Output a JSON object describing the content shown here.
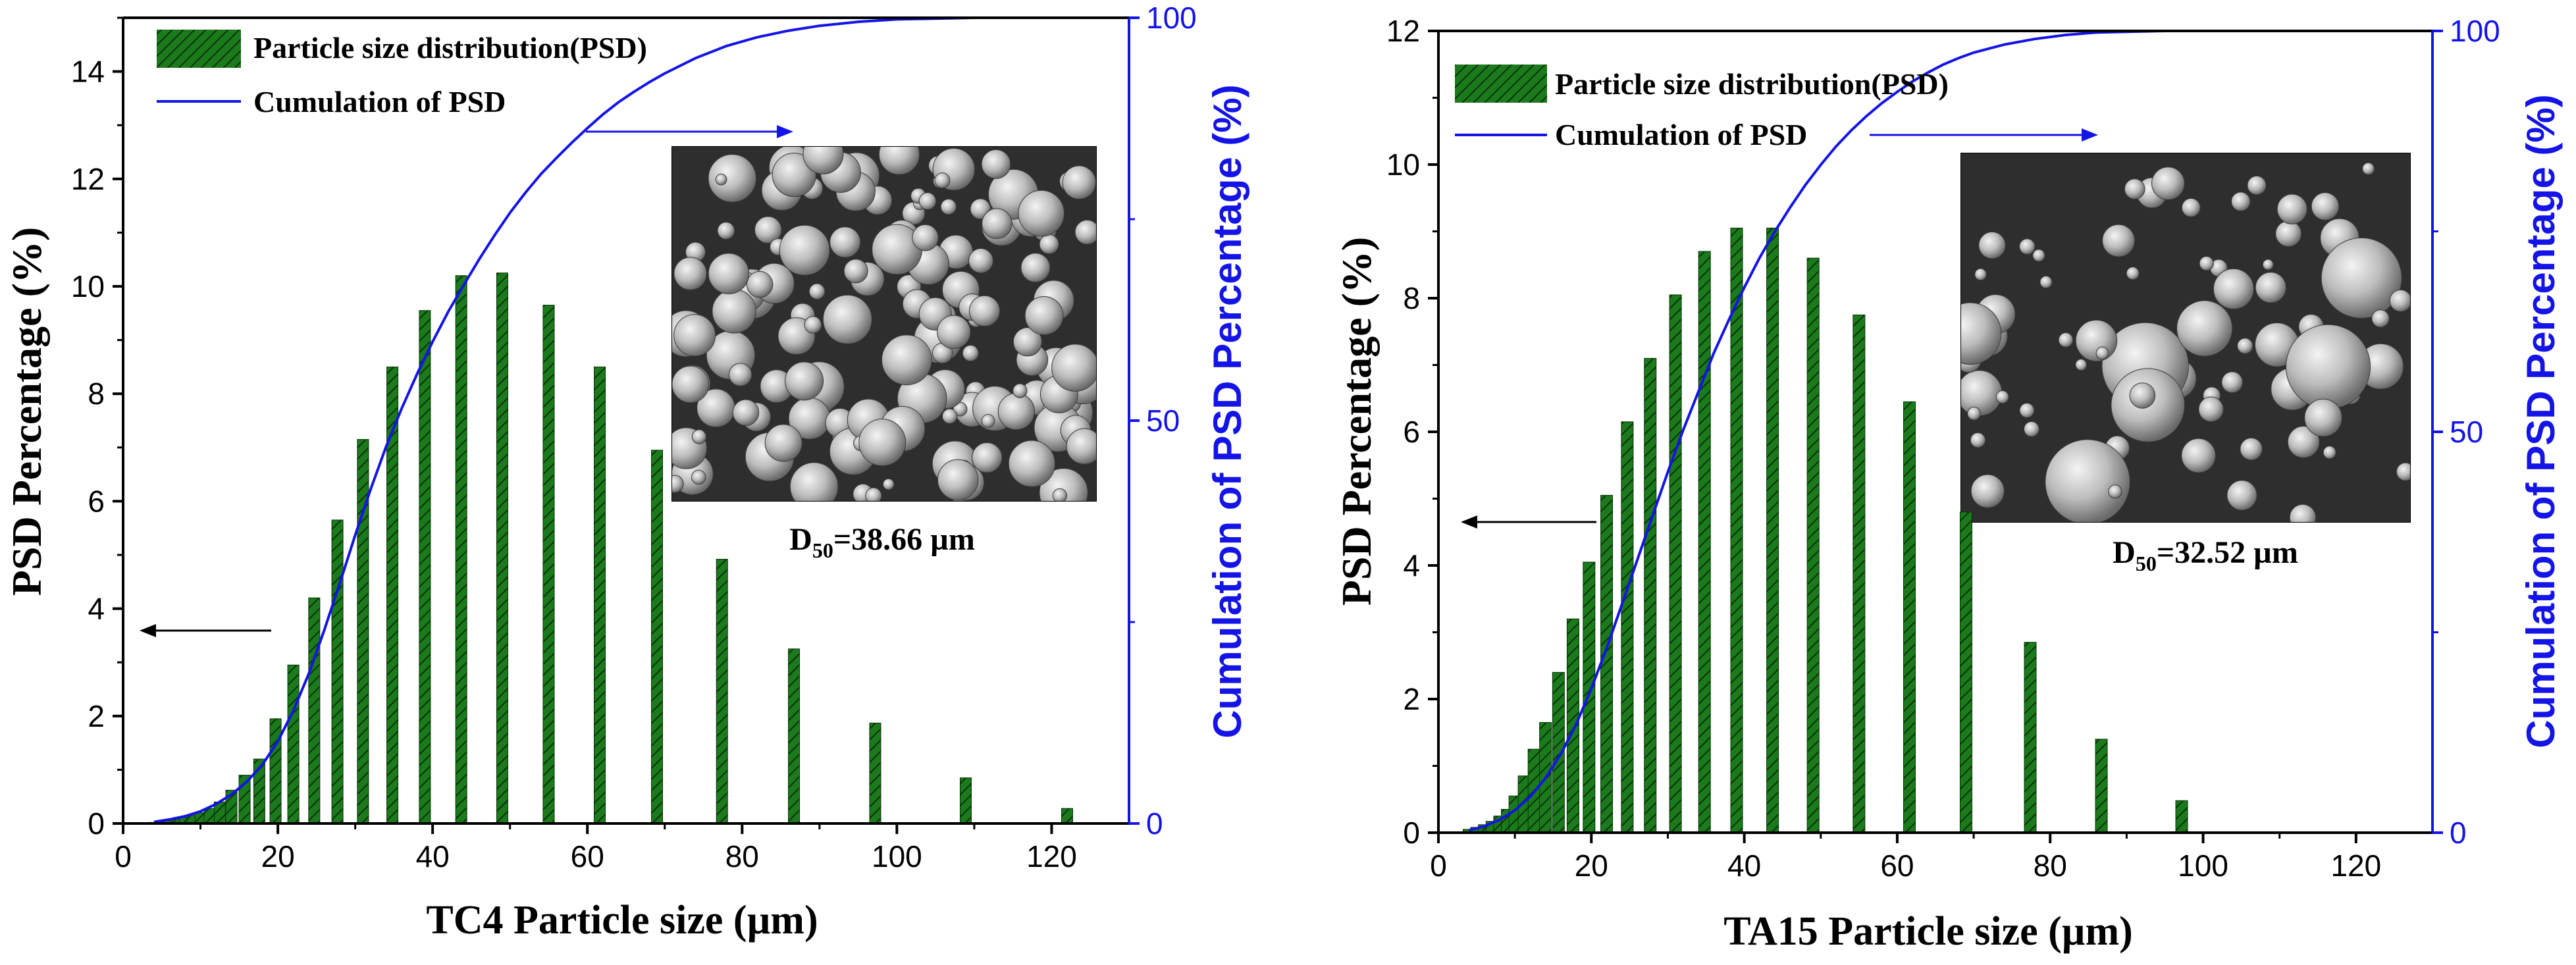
{
  "chart_data": [
    {
      "type": "bar",
      "id": "tc4",
      "xlabel": "TC4 Particle size (µm)",
      "ylabel": "PSD Percentage (%)",
      "y2label": "Cumulation of PSD Percentage (%)",
      "xlim": [
        0,
        130
      ],
      "ylim": [
        0,
        15
      ],
      "y2lim": [
        0,
        100
      ],
      "xticks": [
        0,
        20,
        40,
        60,
        80,
        100,
        120
      ],
      "yticks": [
        0,
        2,
        4,
        6,
        8,
        10,
        12,
        14
      ],
      "y2ticks": [
        0,
        50,
        100
      ],
      "legend": {
        "position": "top-left",
        "entries": [
          "Particle size distribution(PSD)",
          "Cumulation of PSD"
        ]
      },
      "annotation": {
        "prefix": "D",
        "sub": "50",
        "value": "=38.66 µm"
      },
      "colors": {
        "bar_fill": "#1b7a1b",
        "bar_hatch": "#0a330a",
        "line": "#1414e6",
        "axis_right": "#1414e6"
      },
      "series": [
        {
          "name": "Particle size distribution(PSD)",
          "kind": "bar",
          "x": [
            4,
            5,
            6,
            7,
            8,
            9,
            10,
            11.2,
            12.5,
            14,
            15.7,
            17.6,
            19.7,
            22,
            24.7,
            27.7,
            31,
            34.8,
            39,
            43.7,
            49,
            55,
            61.6,
            69,
            77.4,
            86.7,
            97.2,
            108.9,
            122
          ],
          "values": [
            0.02,
            0.03,
            0.05,
            0.08,
            0.11,
            0.15,
            0.2,
            0.28,
            0.4,
            0.62,
            0.9,
            1.2,
            1.95,
            2.95,
            4.2,
            5.65,
            7.15,
            8.5,
            9.55,
            10.2,
            10.25,
            9.65,
            8.5,
            6.95,
            4.92,
            3.25,
            1.87,
            0.85,
            0.28
          ]
        },
        {
          "name": "Cumulation of PSD",
          "kind": "line",
          "x": [
            4,
            6,
            8,
            10,
            12,
            14,
            16,
            18,
            20,
            22,
            24,
            26,
            28,
            30,
            32,
            34,
            36,
            38,
            40,
            42,
            44,
            46,
            48,
            50,
            52,
            54,
            56,
            58,
            60,
            62,
            64,
            66,
            68,
            70,
            74,
            78,
            82,
            86,
            90,
            95,
            100,
            110,
            120,
            130
          ],
          "values": [
            0.2,
            0.5,
            0.9,
            1.5,
            2.4,
            3.6,
            5.2,
            7.3,
            10.2,
            14,
            18.6,
            24,
            29.8,
            35.8,
            41.5,
            46.8,
            51.5,
            55.8,
            59.8,
            63.5,
            66.8,
            70,
            73,
            75.8,
            78.3,
            80.6,
            82.6,
            84.5,
            86.3,
            88,
            89.5,
            90.8,
            92,
            93.1,
            95,
            96.5,
            97.6,
            98.4,
            99,
            99.5,
            99.8,
            100,
            100,
            100
          ]
        }
      ]
    },
    {
      "type": "bar",
      "id": "ta15",
      "xlabel": "TA15 Particle size (µm)",
      "ylabel": "PSD Percentage (%)",
      "y2label": "Cumulation of PSD Percentage (%)",
      "xlim": [
        0,
        130
      ],
      "ylim": [
        0,
        12
      ],
      "y2lim": [
        0,
        100
      ],
      "xticks": [
        0,
        20,
        40,
        60,
        80,
        100,
        120
      ],
      "yticks": [
        0,
        2,
        4,
        6,
        8,
        10,
        12
      ],
      "y2ticks": [
        0,
        50,
        100
      ],
      "legend": {
        "position": "top-left",
        "entries": [
          "Particle size distribution(PSD)",
          "Cumulation of PSD"
        ]
      },
      "annotation": {
        "prefix": "D",
        "sub": "50",
        "value": "=32.52 µm"
      },
      "colors": {
        "bar_fill": "#1b7a1b",
        "bar_hatch": "#0a330a",
        "line": "#1414e6",
        "axis_right": "#1414e6"
      },
      "series": [
        {
          "name": "Particle size distribution(PSD)",
          "kind": "bar",
          "x": [
            4,
            5,
            6,
            7,
            8,
            9,
            10,
            11.2,
            12.5,
            14,
            15.7,
            17.6,
            19.7,
            22,
            24.7,
            27.7,
            31,
            34.8,
            39,
            43.7,
            49,
            55,
            61.6,
            69,
            77.4,
            86.7,
            97.2
          ],
          "values": [
            0.05,
            0.08,
            0.12,
            0.17,
            0.25,
            0.35,
            0.55,
            0.85,
            1.25,
            1.65,
            2.4,
            3.2,
            4.05,
            5.05,
            6.15,
            7.1,
            8.05,
            8.7,
            9.05,
            9.05,
            8.6,
            7.75,
            6.45,
            4.8,
            2.85,
            1.4,
            0.48
          ]
        },
        {
          "name": "Cumulation of PSD",
          "kind": "line",
          "x": [
            4,
            6,
            8,
            10,
            12,
            14,
            16,
            18,
            20,
            22,
            24,
            26,
            28,
            30,
            32,
            34,
            36,
            38,
            40,
            42,
            44,
            46,
            48,
            50,
            52,
            54,
            56,
            58,
            60,
            62,
            64,
            66,
            68,
            70,
            74,
            78,
            82,
            86,
            90,
            95,
            100,
            110,
            117
          ],
          "values": [
            0.3,
            0.8,
            1.6,
            2.8,
            4.5,
            6.8,
            9.8,
            13.5,
            18,
            23,
            28.5,
            34,
            39.5,
            45,
            50.2,
            55,
            59.8,
            64,
            68,
            71.7,
            75,
            78,
            80.8,
            83.3,
            85.6,
            87.6,
            89.4,
            91,
            92.4,
            93.7,
            94.8,
            95.8,
            96.6,
            97.3,
            98.3,
            99,
            99.5,
            99.8,
            99.9,
            100,
            100,
            100,
            100
          ]
        }
      ]
    }
  ]
}
